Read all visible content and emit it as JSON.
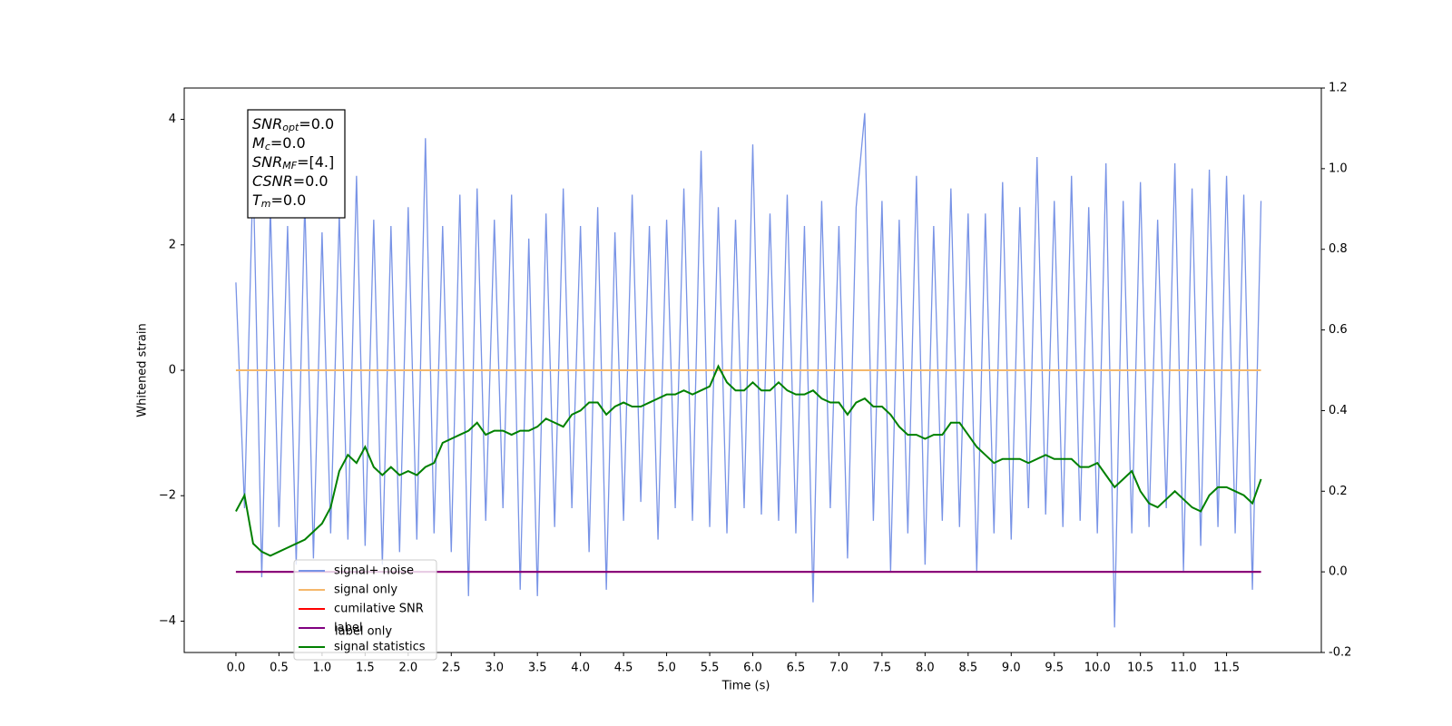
{
  "chart_data": {
    "type": "line",
    "y_label": "Whitened strain",
    "x_label": "Time (s)",
    "xlim": [
      -0.6,
      12.6
    ],
    "xticks": [
      {
        "value": 0,
        "label": "0.0"
      },
      0.5,
      {
        "value": 1,
        "label": "1.0"
      },
      1.5,
      {
        "value": 2,
        "label": "2.0"
      },
      2.5,
      {
        "value": 3,
        "label": "3.0"
      },
      3.5,
      {
        "value": 4,
        "label": "4.0"
      },
      4.5,
      {
        "value": 5,
        "label": "5.0"
      },
      5.5,
      {
        "value": 6,
        "label": "6.0"
      },
      6.5,
      {
        "value": 7,
        "label": "7.0"
      },
      7.5,
      {
        "value": 8,
        "label": "8.0"
      },
      8.5,
      {
        "value": 9,
        "label": "9.0"
      },
      9.5,
      {
        "value": 10,
        "label": "10.0"
      },
      10.5,
      {
        "value": 11,
        "label": "11.0"
      },
      11.5
    ],
    "ylim": [
      -4.5,
      4.5
    ],
    "yticks": [
      {
        "value": -4,
        "label": "−4"
      },
      {
        "value": -2,
        "label": "−2"
      },
      0,
      2,
      4
    ],
    "y2lim": [
      -0.2,
      1.2
    ],
    "y2ticks": [
      -0.2,
      {
        "value": 0,
        "label": "0.0"
      },
      0.2,
      0.4,
      0.6,
      0.8,
      {
        "value": 1,
        "label": "1.0"
      },
      1.2
    ],
    "x": [
      0,
      0.1,
      0.2,
      0.3,
      0.4,
      0.5,
      0.6,
      0.7,
      0.8,
      0.9,
      1,
      1.1,
      1.2,
      1.3,
      1.4,
      1.5,
      1.6,
      1.7,
      1.8,
      1.9,
      2,
      2.1,
      2.2,
      2.3,
      2.4,
      2.5,
      2.6,
      2.7,
      2.8,
      2.9,
      3,
      3.1,
      3.2,
      3.3,
      3.4,
      3.5,
      3.6,
      3.7,
      3.8,
      3.9,
      4,
      4.1,
      4.2,
      4.3,
      4.4,
      4.5,
      4.6,
      4.7,
      4.8,
      4.9,
      5,
      5.1,
      5.2,
      5.3,
      5.4,
      5.5,
      5.6,
      5.7,
      5.8,
      5.9,
      6,
      6.1,
      6.2,
      6.3,
      6.4,
      6.5,
      6.6,
      6.7,
      6.8,
      6.9,
      7,
      7.1,
      7.2,
      7.3,
      7.4,
      7.5,
      7.6,
      7.7,
      7.8,
      7.9,
      8,
      8.1,
      8.2,
      8.3,
      8.4,
      8.5,
      8.6,
      8.7,
      8.8,
      8.9,
      9,
      9.1,
      9.2,
      9.3,
      9.4,
      9.5,
      9.6,
      9.7,
      9.8,
      9.9,
      10,
      10.1,
      10.2,
      10.3,
      10.4,
      10.5,
      10.6,
      10.7,
      10.8,
      10.9,
      11,
      11.1,
      11.2,
      11.3,
      11.4,
      11.5,
      11.6,
      11.7,
      11.8,
      11.9
    ],
    "series": [
      {
        "name": "signal+ noise",
        "color": "#7893e6",
        "values": [
          1.4,
          -2.2,
          3.2,
          -3.3,
          2.6,
          -2.5,
          2.3,
          -3.1,
          2.7,
          -3.0,
          2.2,
          -2.6,
          2.5,
          -2.7,
          3.1,
          -2.8,
          2.4,
          -3.1,
          2.3,
          -2.9,
          2.6,
          -2.7,
          3.7,
          -2.6,
          2.3,
          -2.9,
          2.8,
          -3.6,
          2.9,
          -2.4,
          2.4,
          -2.2,
          2.8,
          -3.5,
          2.1,
          -3.6,
          2.5,
          -2.5,
          2.9,
          -2.2,
          2.3,
          -2.9,
          2.6,
          -3.5,
          2.2,
          -2.4,
          2.8,
          -2.1,
          2.3,
          -2.7,
          2.4,
          -2.2,
          2.9,
          -2.4,
          3.5,
          -2.5,
          2.6,
          -2.6,
          2.4,
          -2.2,
          3.6,
          -2.3,
          2.5,
          -2.4,
          2.8,
          -2.6,
          2.3,
          -3.7,
          2.7,
          -2.2,
          2.3,
          -3.0,
          2.6,
          4.1,
          -2.4,
          2.7,
          -3.2,
          2.4,
          -2.6,
          3.1,
          -3.1,
          2.3,
          -2.4,
          2.9,
          -2.5,
          2.5,
          -3.2,
          2.5,
          -2.6,
          3.0,
          -2.7,
          2.6,
          -2.2,
          3.4,
          -2.3,
          2.7,
          -2.5,
          3.1,
          -2.4,
          2.6,
          -2.6,
          3.3,
          -4.1,
          2.7,
          -2.6,
          3.0,
          -2.5,
          2.4,
          -2.2,
          3.3,
          -3.2,
          2.9,
          -2.8,
          3.2,
          -2.5,
          3.1,
          -2.6,
          2.8,
          -3.5,
          2.7
        ]
      },
      {
        "name": "signal only",
        "color": "#f5b86b",
        "values": [
          0,
          0,
          0,
          0,
          0,
          0,
          0,
          0,
          0,
          0,
          0,
          0,
          0,
          0,
          0,
          0,
          0,
          0,
          0,
          0,
          0,
          0,
          0,
          0,
          0,
          0,
          0,
          0,
          0,
          0,
          0,
          0,
          0,
          0,
          0,
          0,
          0,
          0,
          0,
          0,
          0,
          0,
          0,
          0,
          0,
          0,
          0,
          0,
          0,
          0,
          0,
          0,
          0,
          0,
          0,
          0,
          0,
          0,
          0,
          0,
          0,
          0,
          0,
          0,
          0,
          0,
          0,
          0,
          0,
          0,
          0,
          0,
          0,
          0,
          0,
          0,
          0,
          0,
          0,
          0,
          0,
          0,
          0,
          0,
          0,
          0,
          0,
          0,
          0,
          0,
          0,
          0,
          0,
          0,
          0,
          0,
          0,
          0,
          0,
          0,
          0,
          0,
          0,
          0,
          0,
          0,
          0,
          0,
          0,
          0,
          0,
          0,
          0,
          0,
          0,
          0,
          0,
          0,
          0,
          0
        ]
      },
      {
        "name": "cumilative SNR",
        "color": "#ff0000",
        "axis": "y2",
        "values": [
          0,
          0,
          0,
          0,
          0,
          0,
          0,
          0,
          0,
          0,
          0,
          0,
          0,
          0,
          0,
          0,
          0,
          0,
          0,
          0,
          0,
          0,
          0,
          0,
          0,
          0,
          0,
          0,
          0,
          0,
          0,
          0,
          0,
          0,
          0,
          0,
          0,
          0,
          0,
          0,
          0,
          0,
          0,
          0,
          0,
          0,
          0,
          0,
          0,
          0,
          0,
          0,
          0,
          0,
          0,
          0,
          0,
          0,
          0,
          0,
          0,
          0,
          0,
          0,
          0,
          0,
          0,
          0,
          0,
          0,
          0,
          0,
          0,
          0,
          0,
          0,
          0,
          0,
          0,
          0,
          0,
          0,
          0,
          0,
          0,
          0,
          0,
          0,
          0,
          0,
          0,
          0,
          0,
          0,
          0,
          0,
          0,
          0,
          0,
          0,
          0,
          0,
          0,
          0,
          0,
          0,
          0,
          0,
          0,
          0,
          0,
          0,
          0,
          0,
          0,
          0,
          0,
          0,
          0,
          0
        ]
      },
      {
        "name": "label",
        "color": "#800080",
        "axis": "y2",
        "values": [
          0,
          0,
          0,
          0,
          0,
          0,
          0,
          0,
          0,
          0,
          0,
          0,
          0,
          0,
          0,
          0,
          0,
          0,
          0,
          0,
          0,
          0,
          0,
          0,
          0,
          0,
          0,
          0,
          0,
          0,
          0,
          0,
          0,
          0,
          0,
          0,
          0,
          0,
          0,
          0,
          0,
          0,
          0,
          0,
          0,
          0,
          0,
          0,
          0,
          0,
          0,
          0,
          0,
          0,
          0,
          0,
          0,
          0,
          0,
          0,
          0,
          0,
          0,
          0,
          0,
          0,
          0,
          0,
          0,
          0,
          0,
          0,
          0,
          0,
          0,
          0,
          0,
          0,
          0,
          0,
          0,
          0,
          0,
          0,
          0,
          0,
          0,
          0,
          0,
          0,
          0,
          0,
          0,
          0,
          0,
          0,
          0,
          0,
          0,
          0,
          0,
          0,
          0,
          0,
          0,
          0,
          0,
          0,
          0,
          0,
          0,
          0,
          0,
          0,
          0,
          0,
          0,
          0,
          0,
          0
        ]
      },
      {
        "name": "signal statistics",
        "color": "#008000",
        "axis": "y2",
        "values": [
          0.15,
          0.19,
          0.07,
          0.05,
          0.04,
          0.05,
          0.06,
          0.07,
          0.08,
          0.1,
          0.12,
          0.16,
          0.25,
          0.29,
          0.27,
          0.31,
          0.26,
          0.24,
          0.26,
          0.24,
          0.25,
          0.24,
          0.26,
          0.27,
          0.32,
          0.33,
          0.34,
          0.35,
          0.37,
          0.34,
          0.35,
          0.35,
          0.34,
          0.35,
          0.35,
          0.36,
          0.38,
          0.37,
          0.36,
          0.39,
          0.4,
          0.42,
          0.42,
          0.39,
          0.41,
          0.42,
          0.41,
          0.41,
          0.42,
          0.43,
          0.44,
          0.44,
          0.45,
          0.44,
          0.45,
          0.46,
          0.51,
          0.47,
          0.45,
          0.45,
          0.47,
          0.45,
          0.45,
          0.47,
          0.45,
          0.44,
          0.44,
          0.45,
          0.43,
          0.42,
          0.42,
          0.39,
          0.42,
          0.43,
          0.41,
          0.41,
          0.39,
          0.36,
          0.34,
          0.34,
          0.33,
          0.34,
          0.34,
          0.37,
          0.37,
          0.34,
          0.31,
          0.29,
          0.27,
          0.28,
          0.28,
          0.28,
          0.27,
          0.28,
          0.29,
          0.28,
          0.28,
          0.28,
          0.26,
          0.26,
          0.27,
          0.24,
          0.21,
          0.23,
          0.25,
          0.2,
          0.17,
          0.16,
          0.18,
          0.2,
          0.18,
          0.16,
          0.15,
          0.19,
          0.21,
          0.21,
          0.2,
          0.19,
          0.17,
          0.23
        ]
      }
    ],
    "legend_overlay_text": "label only",
    "info_box": [
      {
        "symbol": "SNR",
        "sub": "opt",
        "text": "=0.0"
      },
      {
        "symbol": "M",
        "sub": "c",
        "text": "=0.0"
      },
      {
        "symbol": "SNR",
        "sub": "MF",
        "text": "=[4.]"
      },
      {
        "symbol": "CSNR",
        "text": "=0.0"
      },
      {
        "symbol": "T",
        "sub": "m",
        "text": "=0.0"
      }
    ]
  }
}
